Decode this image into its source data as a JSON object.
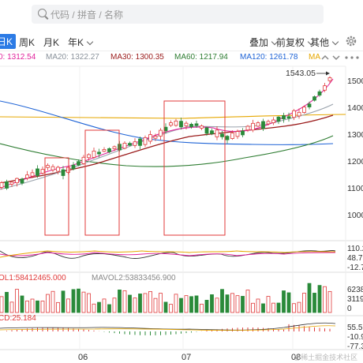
{
  "search": {
    "placeholder": "代码 / 拼音 / 名称"
  },
  "toolbar": {
    "periods": [
      "日K",
      "周K",
      "月K",
      "年K"
    ],
    "overlay_label": "叠加",
    "restore_label": "前复权",
    "other_label": "其他"
  },
  "ma_values": {
    "ma10": "0: 1312.54",
    "ma20": "MA20: 1322.27",
    "ma30": "MA30: 1300.35",
    "ma60": "MA60: 1217.94",
    "ma120": "MA120: 1261.78",
    "ma_tail": "MA"
  },
  "colors": {
    "ma10": "#e0219a",
    "ma20": "#9aa3ad",
    "ma30": "#9b1c1c",
    "ma60": "#2e7d32",
    "ma120": "#1e63d6",
    "ma_tail": "#e6a700",
    "up": "#e03a3a",
    "down": "#2a8a3a",
    "highlight_box": "#e03a3a"
  },
  "icons": [
    "settings-gear-icon",
    "chevron-up-icon",
    "chevron-down-icon",
    "more-icon"
  ],
  "price_axis": [
    "1500",
    "1400",
    "1300",
    "1200",
    "1100",
    "1000"
  ],
  "high_marker": "1543.05",
  "kdj_axis": [
    "110.2",
    "48.79",
    "-12.7"
  ],
  "volume": {
    "label": "OL1:58412465.000",
    "mavol_label": "MAVOL2:53833456.900",
    "axis": [
      "6238",
      "3119",
      "0"
    ]
  },
  "macd": {
    "label": "CD:25.184",
    "axis": [
      "55.5",
      "-10.9",
      "-77.3"
    ]
  },
  "date_axis": [
    "06",
    "07",
    "08"
  ],
  "watermark": "@稀土掘金技术社区",
  "chart_data": {
    "type": "candlestick",
    "description": "Daily K-line chart with moving averages and indicator sub-panels",
    "price_ticks": [
      1000,
      1100,
      1200,
      1300,
      1400,
      1500
    ],
    "latest_high": 1543.05,
    "ma": {
      "MA20": 1322.27,
      "MA30": 1300.35,
      "MA60": 1217.94,
      "MA120": 1261.78
    }
  }
}
